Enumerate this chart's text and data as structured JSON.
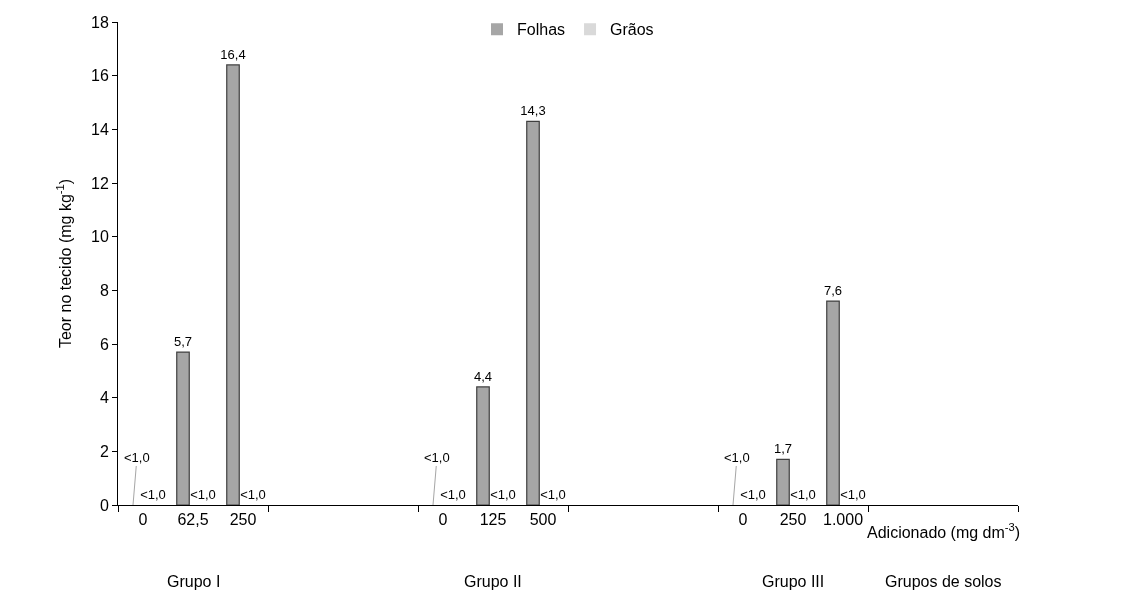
{
  "chart_data": {
    "type": "bar",
    "ylabel": "Teor no tecido (mg kg$^{-1}$)",
    "xlabel": "Adicionado (mg dm$^{-3}$)",
    "categories": [
      "0",
      "62,5",
      "250",
      null,
      null,
      null,
      "0",
      "125",
      "500",
      null,
      null,
      null,
      "0",
      "250",
      "1.000",
      null,
      null,
      null
    ],
    "series": [
      {
        "name": "Folhas",
        "color": "#a6a6a6",
        "values": [
          0,
          5.7,
          16.4,
          null,
          null,
          null,
          0,
          4.4,
          14.3,
          null,
          null,
          null,
          0,
          1.7,
          7.6,
          null,
          null,
          null
        ],
        "value_labels": [
          "<1,0",
          "5,7",
          "16,4",
          null,
          null,
          null,
          "<1,0",
          "4,4",
          "14,3",
          null,
          null,
          null,
          "<1,0",
          "1,7",
          "7,6",
          null,
          null,
          null
        ]
      },
      {
        "name": "Grãos",
        "color": "#d9d9d9",
        "values": [
          0,
          0,
          0,
          null,
          null,
          null,
          0,
          0,
          0,
          null,
          null,
          null,
          0,
          0,
          0,
          null,
          null,
          null
        ],
        "value_labels": [
          "<1,0",
          "<1,0",
          "<1,0",
          null,
          null,
          null,
          "<1,0",
          "<1,0",
          "<1,0",
          null,
          null,
          null,
          "<1,0",
          "<1,0",
          "<1,0",
          null,
          null,
          null
        ]
      }
    ],
    "annotations": [
      "Grupo I",
      "Grupo II",
      "Grupo III",
      "Grupos de solos"
    ],
    "ylim": [
      0,
      18
    ],
    "yticks": [
      0,
      2,
      4,
      6,
      8,
      10,
      12,
      14,
      16,
      18
    ],
    "legend": "top"
  }
}
